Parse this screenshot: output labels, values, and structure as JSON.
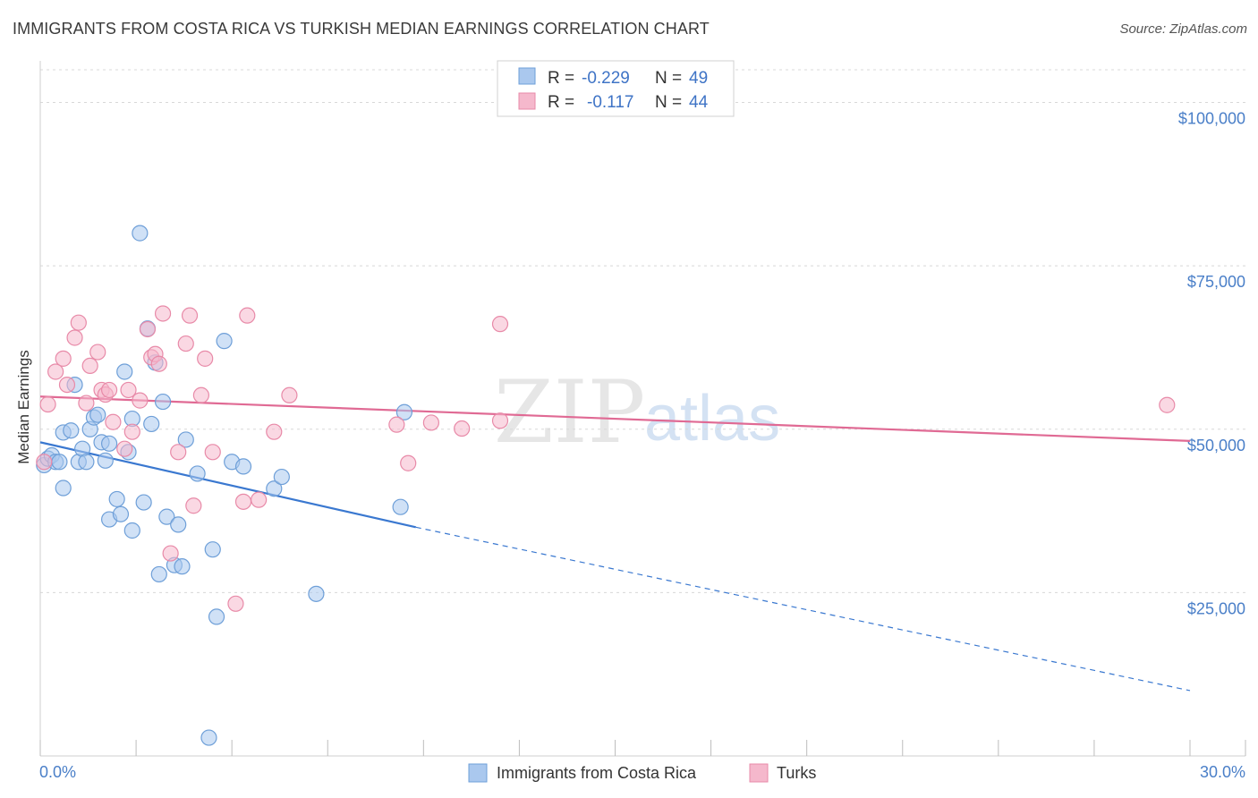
{
  "title": "IMMIGRANTS FROM COSTA RICA VS TURKISH MEDIAN EARNINGS CORRELATION CHART",
  "source": "Source: ZipAtlas.com",
  "watermark": {
    "zip": "ZIP",
    "atlas": "atlas"
  },
  "colors": {
    "blue_fill": "#aac8ee",
    "blue_stroke": "#6e9fd8",
    "blue_line": "#3a78d0",
    "pink_fill": "#f5b8cc",
    "pink_stroke": "#e88aa8",
    "pink_line": "#e06a94",
    "grid": "#d8d8d8",
    "tick_text": "#4a7fc8"
  },
  "legend": {
    "rows": [
      {
        "r_label": "R = ",
        "r_value": "-0.229",
        "n_label": "N = ",
        "n_value": "49"
      },
      {
        "r_label": "R = ",
        "r_value": "-0.117",
        "n_label": "N = ",
        "n_value": "44"
      }
    ]
  },
  "chart_data": {
    "type": "scatter",
    "title": "IMMIGRANTS FROM COSTA RICA VS TURKISH MEDIAN EARNINGS CORRELATION CHART",
    "xlabel": "",
    "ylabel": "Median Earnings",
    "xlim": [
      0,
      30
    ],
    "ylim": [
      0,
      105000
    ],
    "x_tick_labels": [
      "0.0%",
      "30.0%"
    ],
    "y_ticks": [
      25000,
      50000,
      75000,
      100000
    ],
    "y_tick_labels": [
      "$25,000",
      "$50,000",
      "$75,000",
      "$100,000"
    ],
    "grid": true,
    "series": [
      {
        "name": "Immigrants from Costa Rica",
        "color": "blue",
        "points": [
          [
            0.1,
            44500
          ],
          [
            0.2,
            45500
          ],
          [
            0.3,
            46000
          ],
          [
            0.4,
            45000
          ],
          [
            0.5,
            45000
          ],
          [
            0.6,
            41000
          ],
          [
            0.6,
            49500
          ],
          [
            0.8,
            49800
          ],
          [
            0.9,
            56800
          ],
          [
            1.0,
            45000
          ],
          [
            1.1,
            47000
          ],
          [
            1.2,
            45000
          ],
          [
            1.3,
            50000
          ],
          [
            1.4,
            51800
          ],
          [
            1.5,
            52200
          ],
          [
            1.6,
            48000
          ],
          [
            1.7,
            45200
          ],
          [
            1.8,
            47800
          ],
          [
            1.8,
            36200
          ],
          [
            2.0,
            39300
          ],
          [
            2.1,
            37000
          ],
          [
            2.2,
            58800
          ],
          [
            2.3,
            46500
          ],
          [
            2.4,
            51600
          ],
          [
            2.4,
            34500
          ],
          [
            2.6,
            80000
          ],
          [
            2.7,
            38800
          ],
          [
            2.8,
            65400
          ],
          [
            2.9,
            50800
          ],
          [
            3.0,
            60200
          ],
          [
            3.1,
            27800
          ],
          [
            3.2,
            54200
          ],
          [
            3.3,
            36600
          ],
          [
            3.5,
            29200
          ],
          [
            3.6,
            35400
          ],
          [
            3.7,
            29000
          ],
          [
            3.8,
            48400
          ],
          [
            4.1,
            43200
          ],
          [
            4.4,
            2800
          ],
          [
            4.5,
            31600
          ],
          [
            4.6,
            21300
          ],
          [
            4.8,
            63500
          ],
          [
            5.0,
            45000
          ],
          [
            5.3,
            44300
          ],
          [
            6.1,
            40900
          ],
          [
            6.3,
            42700
          ],
          [
            7.2,
            24800
          ],
          [
            9.4,
            38100
          ],
          [
            9.5,
            52600
          ]
        ]
      },
      {
        "name": "Turks",
        "color": "pink",
        "points": [
          [
            0.1,
            45000
          ],
          [
            0.2,
            53800
          ],
          [
            0.4,
            58800
          ],
          [
            0.6,
            60800
          ],
          [
            0.7,
            56800
          ],
          [
            0.9,
            64000
          ],
          [
            1.0,
            66300
          ],
          [
            1.2,
            54000
          ],
          [
            1.3,
            59700
          ],
          [
            1.5,
            61800
          ],
          [
            1.6,
            56000
          ],
          [
            1.7,
            55300
          ],
          [
            1.8,
            56000
          ],
          [
            1.9,
            51100
          ],
          [
            2.2,
            47000
          ],
          [
            2.3,
            56000
          ],
          [
            2.4,
            49600
          ],
          [
            2.6,
            54400
          ],
          [
            2.8,
            65300
          ],
          [
            2.9,
            61000
          ],
          [
            3.0,
            61500
          ],
          [
            3.1,
            60000
          ],
          [
            3.2,
            67700
          ],
          [
            3.4,
            31000
          ],
          [
            3.6,
            46500
          ],
          [
            3.8,
            63100
          ],
          [
            3.9,
            67400
          ],
          [
            4.0,
            38300
          ],
          [
            4.2,
            55200
          ],
          [
            4.3,
            60800
          ],
          [
            4.5,
            46500
          ],
          [
            5.1,
            23300
          ],
          [
            5.3,
            38900
          ],
          [
            5.4,
            67400
          ],
          [
            5.7,
            39200
          ],
          [
            6.1,
            49600
          ],
          [
            6.5,
            55200
          ],
          [
            9.3,
            50700
          ],
          [
            9.6,
            44800
          ],
          [
            10.2,
            51000
          ],
          [
            11.0,
            50100
          ],
          [
            12.0,
            51300
          ],
          [
            12.0,
            66100
          ],
          [
            29.4,
            53700
          ]
        ]
      }
    ],
    "trend_lines": [
      {
        "series": "Immigrants from Costa Rica",
        "solid": [
          [
            0,
            48000
          ],
          [
            9.8,
            35000
          ]
        ],
        "dashed": [
          [
            9.8,
            35000
          ],
          [
            30,
            10000
          ]
        ]
      },
      {
        "series": "Turks",
        "solid": [
          [
            0,
            55000
          ],
          [
            30,
            48200
          ]
        ]
      }
    ]
  }
}
